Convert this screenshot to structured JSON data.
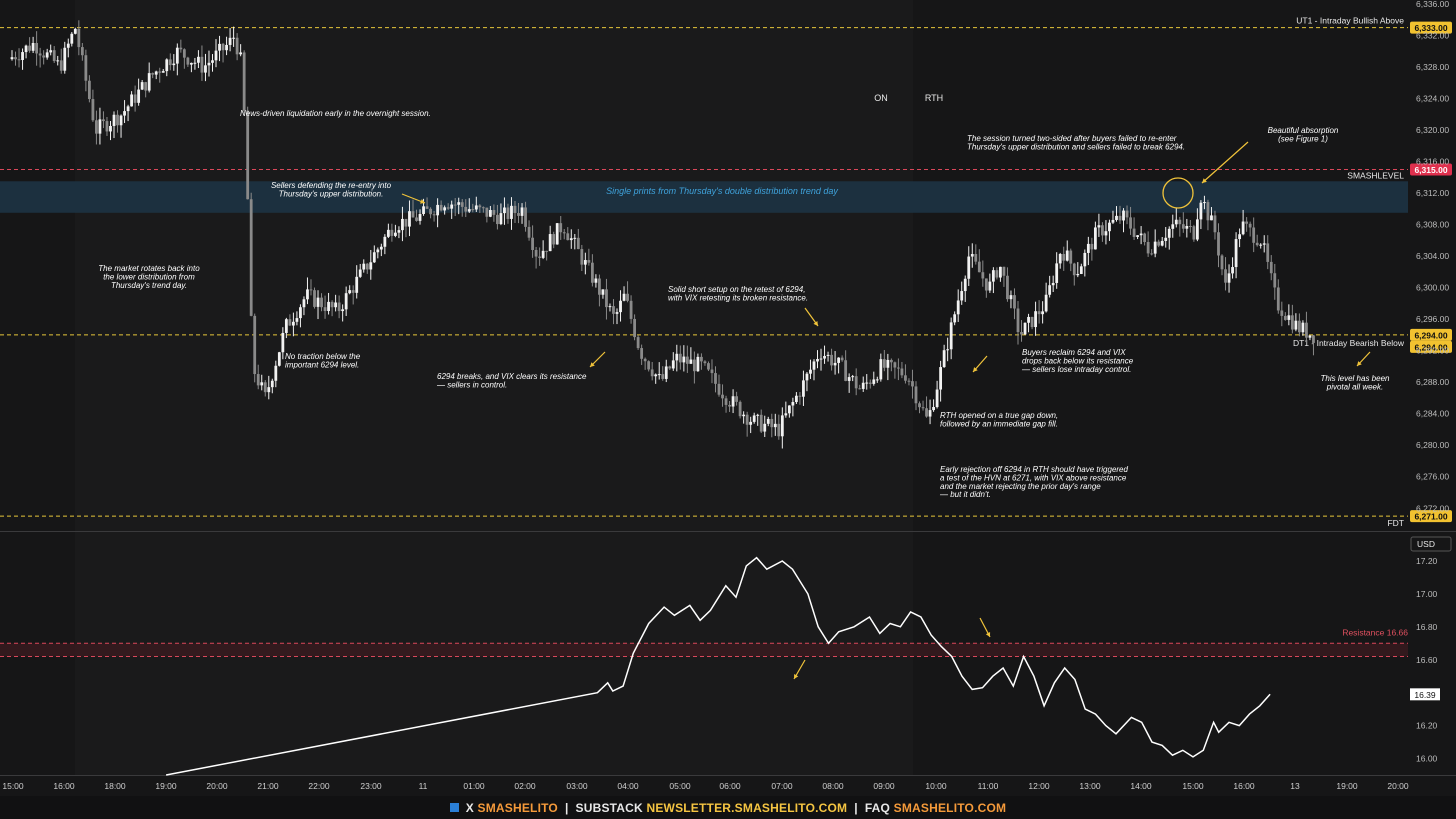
{
  "colors": {
    "background": "#161617",
    "up_candle": "#f2f2f2",
    "down_candle": "#8a8a8a",
    "level_yellow": "#e6c63a",
    "level_red": "#d9475a",
    "zone_blue": "#1d3344",
    "annotation_text": "#ffffff",
    "zone_text": "#3fa3dc",
    "arrow": "#f0c33a"
  },
  "chart_data": [
    {
      "type": "candlestick",
      "y_axis_ticks": [
        "6,336.00",
        "6,332.00",
        "6,328.00",
        "6,324.00",
        "6,320.00",
        "6,316.00",
        "6,312.00",
        "6,308.00",
        "6,304.00",
        "6,300.00",
        "6,296.00",
        "6,292.00",
        "6,288.00",
        "6,284.00",
        "6,280.00",
        "6,276.00",
        "6,272.00"
      ],
      "ylim": [
        6270,
        6336
      ],
      "price_path": [
        [
          0,
          6329
        ],
        [
          0.5,
          6331
        ],
        [
          1.0,
          6328
        ],
        [
          1.3,
          6333
        ],
        [
          1.7,
          6320
        ],
        [
          2.2,
          6322
        ],
        [
          2.8,
          6327
        ],
        [
          3.3,
          6330
        ],
        [
          3.8,
          6328
        ],
        [
          4.3,
          6331
        ],
        [
          4.4,
          6332
        ],
        [
          4.55,
          6328
        ],
        [
          4.65,
          6313
        ],
        [
          4.75,
          6290
        ],
        [
          5.0,
          6286
        ],
        [
          5.4,
          6295
        ],
        [
          5.8,
          6299
        ],
        [
          6.4,
          6297
        ],
        [
          7.0,
          6303
        ],
        [
          7.5,
          6308
        ],
        [
          8.0,
          6309
        ],
        [
          8.5,
          6311
        ],
        [
          9.0,
          6310
        ],
        [
          9.6,
          6309
        ],
        [
          10.0,
          6310
        ],
        [
          10.3,
          6304
        ],
        [
          10.8,
          6308
        ],
        [
          11.4,
          6301
        ],
        [
          11.8,
          6296
        ],
        [
          12.0,
          6299
        ],
        [
          12.3,
          6292
        ],
        [
          12.7,
          6288
        ],
        [
          13.0,
          6291
        ],
        [
          13.5,
          6290
        ],
        [
          14.0,
          6286
        ],
        [
          14.5,
          6283
        ],
        [
          15.0,
          6282
        ],
        [
          15.5,
          6288
        ],
        [
          15.8,
          6292
        ],
        [
          16.2,
          6290
        ],
        [
          16.6,
          6287
        ],
        [
          17.0,
          6290
        ],
        [
          17.5,
          6289
        ],
        [
          17.9,
          6283
        ],
        [
          18.1,
          6288
        ],
        [
          18.4,
          6296
        ],
        [
          18.7,
          6304
        ],
        [
          19.1,
          6300
        ],
        [
          19.3,
          6303
        ],
        [
          19.7,
          6294
        ],
        [
          20.2,
          6298
        ],
        [
          20.5,
          6305
        ],
        [
          20.8,
          6302
        ],
        [
          21.2,
          6307
        ],
        [
          21.7,
          6309
        ],
        [
          22.2,
          6305
        ],
        [
          22.7,
          6308
        ],
        [
          23.1,
          6307
        ],
        [
          23.2,
          6312
        ],
        [
          23.5,
          6307
        ],
        [
          23.7,
          6300
        ],
        [
          24.0,
          6308
        ],
        [
          24.4,
          6306
        ],
        [
          24.7,
          6298
        ],
        [
          25.1,
          6295
        ],
        [
          25.4,
          6294
        ]
      ],
      "levels": [
        {
          "label": "UT1 - Intraday Bullish Above",
          "value": 6333,
          "badge": "6,333.00",
          "color": "yellow"
        },
        {
          "label": "SMASHLEVEL",
          "value": 6315,
          "badge": "6,315.00",
          "color": "red"
        },
        {
          "label": "DT1 - Intraday Bearish Below",
          "value": 6294,
          "badge": "6,294.00",
          "badge2": "6,294.00",
          "color": "yellow"
        },
        {
          "label": "FDT",
          "value": 6271,
          "badge": "6,271.00",
          "color": "yellow"
        }
      ],
      "single_print_zone": {
        "from": 6309.5,
        "to": 6313.5,
        "label": "Single prints from Thursday's double distribution trend day"
      },
      "session_labels": [
        "ON",
        "RTH"
      ]
    },
    {
      "type": "line",
      "name": "VIX",
      "y_axis_ticks": [
        "17.20",
        "17.00",
        "16.80",
        "16.60",
        "16.40",
        "16.20",
        "16.00"
      ],
      "ylim": [
        15.96,
        17.26
      ],
      "currency": "USD",
      "last_value_badge": "16.39",
      "resistance": {
        "label": "Resistance 16.66",
        "value": 16.66
      },
      "values": [
        [
          3.0,
          15.88
        ],
        [
          11.4,
          16.4
        ],
        [
          11.6,
          16.46
        ],
        [
          11.7,
          16.41
        ],
        [
          11.9,
          16.44
        ],
        [
          12.1,
          16.64
        ],
        [
          12.4,
          16.82
        ],
        [
          12.7,
          16.92
        ],
        [
          12.9,
          16.87
        ],
        [
          13.2,
          16.93
        ],
        [
          13.4,
          16.84
        ],
        [
          13.6,
          16.9
        ],
        [
          13.9,
          17.05
        ],
        [
          14.1,
          16.98
        ],
        [
          14.3,
          17.17
        ],
        [
          14.5,
          17.22
        ],
        [
          14.7,
          17.15
        ],
        [
          15.0,
          17.2
        ],
        [
          15.2,
          17.15
        ],
        [
          15.5,
          17.0
        ],
        [
          15.7,
          16.8
        ],
        [
          15.9,
          16.7
        ],
        [
          16.1,
          16.77
        ],
        [
          16.4,
          16.8
        ],
        [
          16.7,
          16.86
        ],
        [
          16.9,
          16.76
        ],
        [
          17.1,
          16.82
        ],
        [
          17.3,
          16.8
        ],
        [
          17.5,
          16.89
        ],
        [
          17.7,
          16.86
        ],
        [
          17.9,
          16.75
        ],
        [
          18.1,
          16.68
        ],
        [
          18.3,
          16.62
        ],
        [
          18.5,
          16.5
        ],
        [
          18.7,
          16.42
        ],
        [
          18.9,
          16.43
        ],
        [
          19.1,
          16.5
        ],
        [
          19.3,
          16.55
        ],
        [
          19.5,
          16.44
        ],
        [
          19.7,
          16.62
        ],
        [
          19.9,
          16.5
        ],
        [
          20.1,
          16.32
        ],
        [
          20.3,
          16.46
        ],
        [
          20.5,
          16.55
        ],
        [
          20.7,
          16.48
        ],
        [
          20.9,
          16.3
        ],
        [
          21.1,
          16.27
        ],
        [
          21.3,
          16.2
        ],
        [
          21.5,
          16.15
        ],
        [
          21.8,
          16.25
        ],
        [
          22.0,
          16.22
        ],
        [
          22.2,
          16.1
        ],
        [
          22.4,
          16.08
        ],
        [
          22.6,
          16.02
        ],
        [
          22.8,
          16.05
        ],
        [
          23.0,
          16.01
        ],
        [
          23.2,
          16.05
        ],
        [
          23.4,
          16.22
        ],
        [
          23.5,
          16.16
        ],
        [
          23.7,
          16.22
        ],
        [
          23.9,
          16.2
        ],
        [
          24.1,
          16.27
        ],
        [
          24.3,
          16.32
        ],
        [
          24.5,
          16.39
        ]
      ]
    }
  ],
  "x_axis_ticks": [
    "15:00",
    "16:00",
    "18:00",
    "19:00",
    "20:00",
    "21:00",
    "22:00",
    "23:00",
    "11",
    "01:00",
    "02:00",
    "03:00",
    "04:00",
    "05:00",
    "06:00",
    "07:00",
    "08:00",
    "09:00",
    "10:00",
    "11:00",
    "12:00",
    "13:00",
    "14:00",
    "15:00",
    "16:00",
    "13",
    "19:00",
    "20:00"
  ],
  "annotations": [
    {
      "lines": [
        "News-driven liquidation early in the overnight session."
      ],
      "align": "left"
    },
    {
      "lines": [
        "Sellers defending the re-entry into",
        "Thursday's upper distribution."
      ],
      "align": "middle"
    },
    {
      "lines": [
        "The market rotates back into",
        "the lower distribution from",
        "Thursday's trend day."
      ],
      "align": "middle"
    },
    {
      "lines": [
        "No traction below the",
        "important 6294 level."
      ],
      "align": "left"
    },
    {
      "lines": [
        "6294 breaks, and VIX clears its resistance",
        "— sellers in control."
      ],
      "align": "left"
    },
    {
      "lines": [
        "Solid short setup on the retest of 6294,",
        "with VIX retesting its broken resistance."
      ],
      "align": "left"
    },
    {
      "lines": [
        "The session turned two-sided after buyers failed to re-enter",
        "Thursday's upper distribution and sellers failed to break 6294."
      ],
      "align": "left"
    },
    {
      "lines": [
        "Beautiful absorption",
        "(see Figure 1)"
      ],
      "align": "middle"
    },
    {
      "lines": [
        "Buyers reclaim 6294 and VIX",
        "drops back below its resistance",
        "— sellers lose intraday control."
      ],
      "align": "left"
    },
    {
      "lines": [
        "This level has been",
        "pivotal all week."
      ],
      "align": "middle"
    },
    {
      "lines": [
        "RTH opened on a true gap down,",
        "followed by an immediate gap fill."
      ],
      "align": "left"
    },
    {
      "lines": [
        "Early rejection off 6294 in RTH should have triggered",
        "a test of the HVN at 6271, with VIX above resistance",
        "and the market rejecting the prior day's range",
        "— but it didn't."
      ],
      "align": "left"
    }
  ],
  "footer": {
    "x": "X",
    "x_handle": "SMASHELITO",
    "substack": "SUBSTACK",
    "substack_url": "NEWSLETTER.SMASHELITO.COM",
    "faq": "FAQ",
    "faq_url": "SMASHELITO.COM",
    "separator": "|"
  }
}
